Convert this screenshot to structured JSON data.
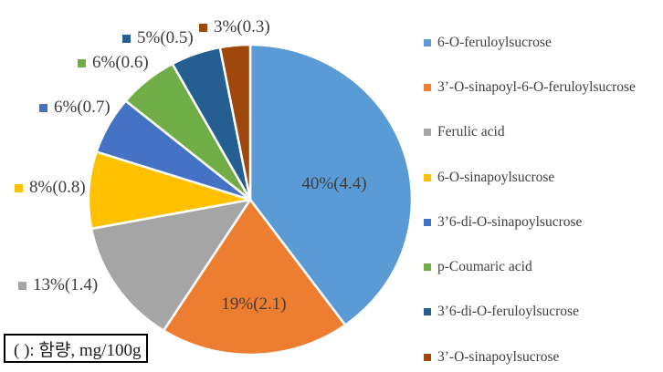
{
  "chart_data": {
    "type": "pie",
    "title": "",
    "direction": "clockwise",
    "start_angle_deg": 0,
    "legend_position": "right",
    "grid": false,
    "unit_note": "( ): 함량, mg/100g",
    "slices": [
      {
        "name": "6-O-feruloylsucrose",
        "percent": 40,
        "amount_mg_per_100g": 4.4,
        "display": "40%(4.4)",
        "color": "#5B9BD5",
        "label_placement": "inside"
      },
      {
        "name": "3’-O-sinapoyl-6-O-feruloylsucrose",
        "percent": 19,
        "amount_mg_per_100g": 2.1,
        "display": "19%(2.1)",
        "color": "#ED7D31",
        "label_placement": "inside"
      },
      {
        "name": "Ferulic acid",
        "percent": 13,
        "amount_mg_per_100g": 1.4,
        "display": "13%(1.4)",
        "color": "#A5A5A5",
        "label_placement": "outside"
      },
      {
        "name": "6-O-sinapoylsucrose",
        "percent": 8,
        "amount_mg_per_100g": 0.8,
        "display": "8%(0.8)",
        "color": "#FFC000",
        "label_placement": "outside"
      },
      {
        "name": "3’6-di-O-sinapoylsucrose",
        "percent": 6,
        "amount_mg_per_100g": 0.7,
        "display": "6%(0.7)",
        "color": "#4472C4",
        "label_placement": "outside"
      },
      {
        "name": "p-Coumaric acid",
        "percent": 6,
        "amount_mg_per_100g": 0.6,
        "display": "6%(0.6)",
        "color": "#70AD47",
        "label_placement": "outside"
      },
      {
        "name": "3’6-di-O-feruloylsucrose",
        "percent": 5,
        "amount_mg_per_100g": 0.5,
        "display": "5%(0.5)",
        "color": "#255E91",
        "label_placement": "outside"
      },
      {
        "name": "3’-O-sinapoylsucrose",
        "percent": 3,
        "amount_mg_per_100g": 0.3,
        "display": "3%(0.3)",
        "color": "#9E480E",
        "label_placement": "outside"
      }
    ]
  },
  "note_box": {
    "text": "( ): 함량, mg/100g"
  }
}
